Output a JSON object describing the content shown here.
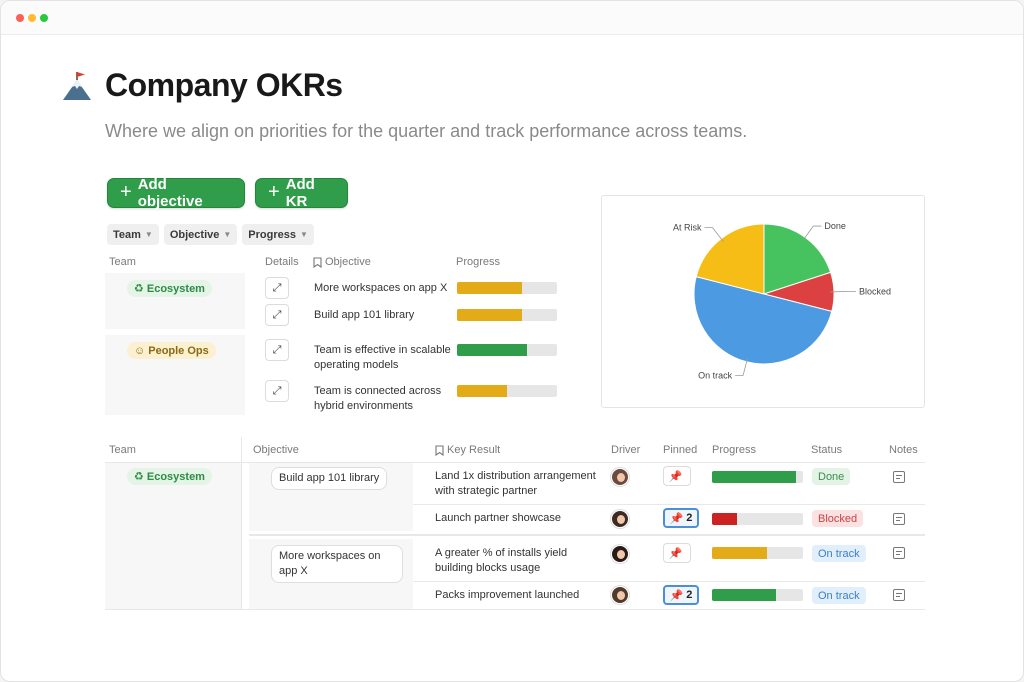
{
  "page": {
    "title": "Company OKRs",
    "subtitle": "Where we align on priorities for the quarter and track performance across teams."
  },
  "toolbar": {
    "add_objective": "Add objective",
    "add_kr": "Add KR"
  },
  "filters": [
    "Team",
    "Objective",
    "Progress"
  ],
  "objectives_table": {
    "headers": {
      "team": "Team",
      "details": "Details",
      "objective": "Objective",
      "progress": "Progress"
    },
    "groups": [
      {
        "team": "Ecosystem",
        "rows": [
          {
            "objective": "More workspaces on app X",
            "progress": 0.65,
            "color": "#e4ab19"
          },
          {
            "objective": "Build app 101 library",
            "progress": 0.65,
            "color": "#e4ab19"
          }
        ]
      },
      {
        "team": "People Ops",
        "rows": [
          {
            "objective": "Team is effective in scalable operating models",
            "progress": 0.7,
            "color": "#2f9d4a"
          },
          {
            "objective": "Team is connected across hybrid environments",
            "progress": 0.5,
            "color": "#e4ab19"
          }
        ]
      }
    ]
  },
  "chart_data": {
    "type": "pie",
    "slices": [
      {
        "label": "Done",
        "value": 20,
        "color": "#46c35e"
      },
      {
        "label": "Blocked",
        "value": 9,
        "color": "#dd4040"
      },
      {
        "label": "On track",
        "value": 50,
        "color": "#4c9be2"
      },
      {
        "label": "At Risk",
        "value": 21,
        "color": "#f6bd17"
      }
    ]
  },
  "kr_table": {
    "headers": {
      "team": "Team",
      "objective": "Objective",
      "key_result": "Key Result",
      "driver": "Driver",
      "pinned": "Pinned",
      "progress": "Progress",
      "status": "Status",
      "notes": "Notes"
    },
    "team": "Ecosystem",
    "objectives": [
      "Build app 101 library",
      "More workspaces on app X"
    ],
    "rows": [
      {
        "key_result": "Land 1x distribution arrangement with strategic partner",
        "pinned": "",
        "progress": 0.92,
        "color": "#2f9d4a",
        "status": "Done",
        "status_kind": "done"
      },
      {
        "key_result": "Launch partner showcase",
        "pinned": "2",
        "progress": 0.28,
        "color": "#cc2222",
        "status": "Blocked",
        "status_kind": "blocked"
      },
      {
        "key_result": "A greater % of installs yield building blocks usage",
        "pinned": "",
        "progress": 0.6,
        "color": "#e4ab19",
        "status": "On track",
        "status_kind": "ontrack"
      },
      {
        "key_result": "Packs improvement launched",
        "pinned": "2",
        "progress": 0.7,
        "color": "#2f9d4a",
        "status": "On track",
        "status_kind": "ontrack"
      }
    ]
  }
}
